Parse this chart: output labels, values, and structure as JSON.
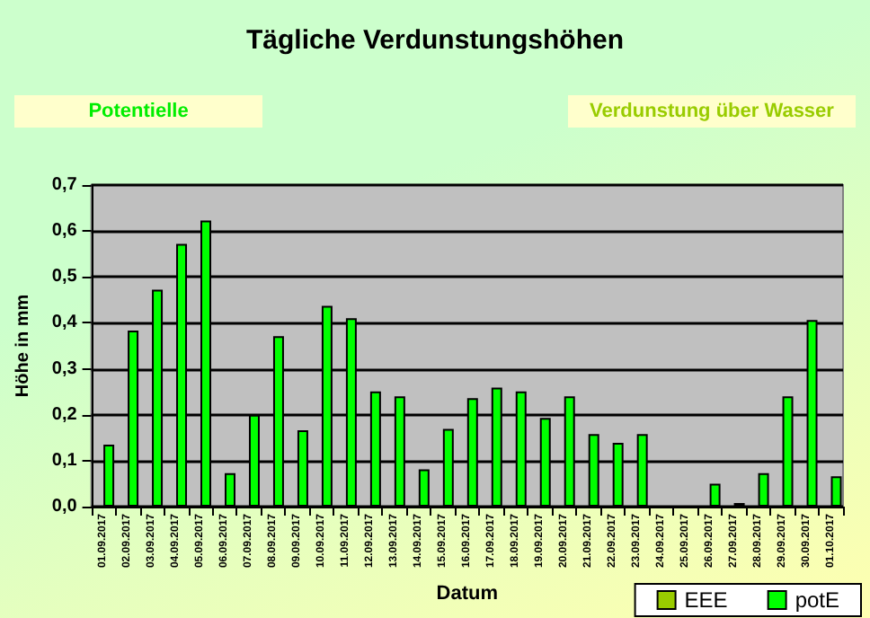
{
  "chart_data": {
    "type": "bar",
    "title": "Tägliche Verdunstungshöhen",
    "xlabel": "Datum",
    "ylabel": "Höhe in mm",
    "annotations": [
      "Potentielle",
      "Verdunstung über Wasser"
    ],
    "categories": [
      "01.09.2017",
      "02.09.2017",
      "03.09.2017",
      "04.09.2017",
      "05.09.2017",
      "06.09.2017",
      "07.09.2017",
      "08.09.2017",
      "09.09.2017",
      "10.09.2017",
      "11.09.2017",
      "12.09.2017",
      "13.09.2017",
      "14.09.2017",
      "15.09.2017",
      "16.09.2017",
      "17.09.2017",
      "18.09.2017",
      "19.09.2017",
      "20.09.2017",
      "21.09.2017",
      "22.09.2017",
      "23.09.2017",
      "24.09.2017",
      "25.09.2017",
      "26.09.2017",
      "27.09.2017",
      "28.09.2017",
      "29.09.2017",
      "30.09.2017",
      "01.10.2017"
    ],
    "series": [
      {
        "name": "EEE",
        "color": "#99cc00",
        "values": [
          null,
          null,
          null,
          null,
          null,
          null,
          null,
          null,
          null,
          null,
          null,
          null,
          null,
          null,
          null,
          null,
          null,
          null,
          null,
          null,
          null,
          null,
          null,
          null,
          null,
          null,
          null,
          null,
          null,
          null,
          null
        ]
      },
      {
        "name": "potE",
        "color": "#00ff00",
        "values": [
          0.135,
          0.383,
          0.472,
          0.572,
          0.623,
          0.073,
          0.2,
          0.371,
          0.166,
          0.437,
          0.41,
          0.251,
          0.24,
          0.081,
          0.169,
          0.236,
          0.259,
          0.251,
          0.193,
          0.24,
          0.158,
          0.139,
          0.158,
          null,
          null,
          0.05,
          0.008,
          0.073,
          0.24,
          0.406,
          0.066
        ]
      }
    ],
    "ylim": [
      0,
      0.7
    ],
    "yticks": [
      {
        "value": 0,
        "label": "0,0"
      },
      {
        "value": 0.1,
        "label": "0,1"
      },
      {
        "value": 0.2,
        "label": "0,2"
      },
      {
        "value": 0.3,
        "label": "0,3"
      },
      {
        "value": 0.4,
        "label": "0,4"
      },
      {
        "value": 0.5,
        "label": "0,5"
      },
      {
        "value": 0.6,
        "label": "0,6"
      },
      {
        "value": 0.7,
        "label": "0,7"
      }
    ],
    "grid": "y",
    "legend": "bottom right"
  }
}
